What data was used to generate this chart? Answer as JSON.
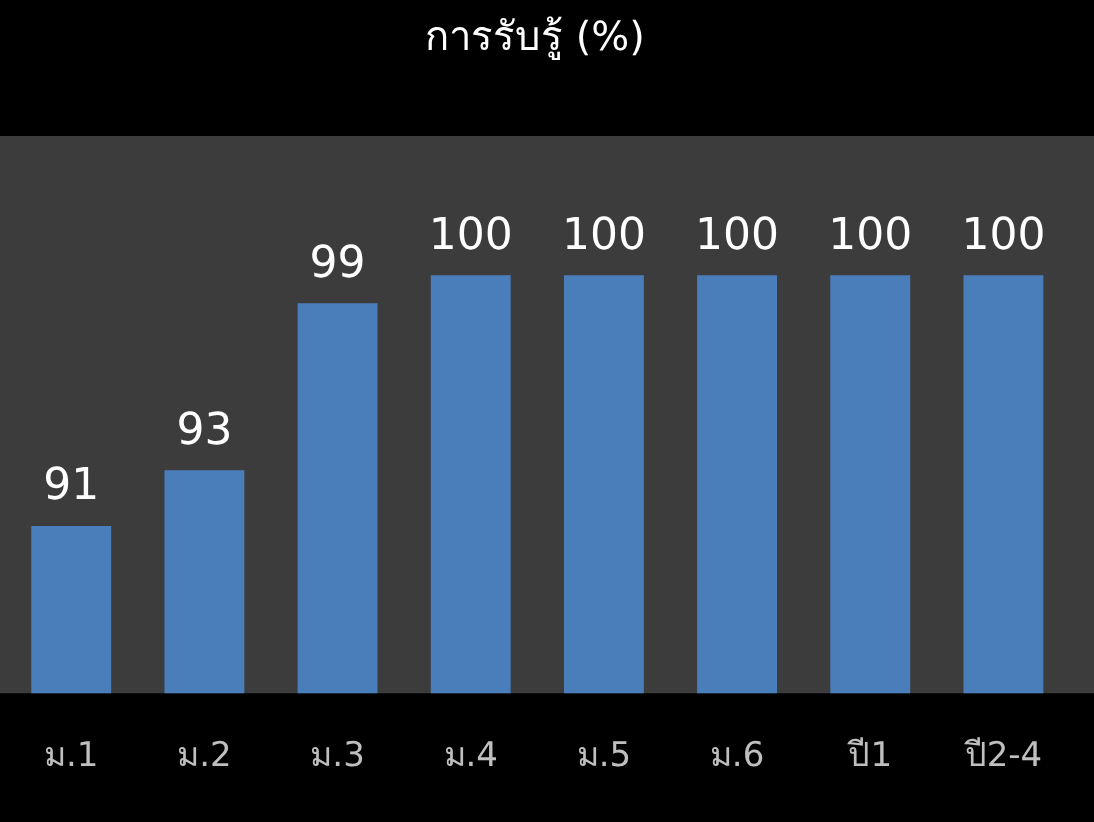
{
  "chart_data": {
    "type": "bar",
    "title": "การรับรู้ (%)",
    "categories": [
      "ม.1",
      "ม.2",
      "ม.3",
      "ม.4",
      "ม.5",
      "ม.6",
      "ปี1",
      "ปี2-4"
    ],
    "values": [
      91,
      93,
      99,
      100,
      100,
      100,
      100,
      100
    ],
    "color": "#4a7ebb",
    "ylim": [
      85,
      105
    ],
    "data_labels": true,
    "tick_labels": "x",
    "grid": false,
    "legend": false
  }
}
